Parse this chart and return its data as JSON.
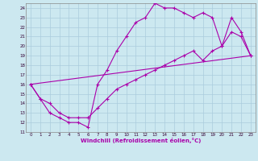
{
  "xlabel": "Windchill (Refroidissement éolien,°C)",
  "bg_color": "#cce8f0",
  "grid_color": "#aaccdd",
  "line_color": "#aa00aa",
  "xlim": [
    -0.5,
    23.5
  ],
  "ylim": [
    11,
    24.5
  ],
  "xticks": [
    0,
    1,
    2,
    3,
    4,
    5,
    6,
    7,
    8,
    9,
    10,
    11,
    12,
    13,
    14,
    15,
    16,
    17,
    18,
    19,
    20,
    21,
    22,
    23
  ],
  "yticks": [
    11,
    12,
    13,
    14,
    15,
    16,
    17,
    18,
    19,
    20,
    21,
    22,
    23,
    24
  ],
  "line1_x": [
    0,
    1,
    2,
    3,
    4,
    5,
    6,
    7,
    8,
    9,
    10,
    11,
    12,
    13,
    14,
    15,
    16,
    17,
    18,
    19,
    20,
    21,
    22,
    23
  ],
  "line1_y": [
    16,
    14.5,
    13,
    12.5,
    12,
    12,
    11.5,
    16,
    17.5,
    19.5,
    21,
    22.5,
    23,
    24.5,
    24,
    24,
    23.5,
    23,
    23.5,
    23,
    20,
    23,
    21.5,
    19
  ],
  "line2_x": [
    0,
    1,
    2,
    3,
    4,
    5,
    6,
    7,
    8,
    9,
    10,
    11,
    12,
    13,
    14,
    15,
    16,
    17,
    18,
    19,
    20,
    21,
    22,
    23
  ],
  "line2_y": [
    16,
    14.5,
    14,
    13,
    12.5,
    12.5,
    12.5,
    13.5,
    14.5,
    15.5,
    16,
    16.5,
    17,
    17.5,
    18,
    18.5,
    19,
    19.5,
    18.5,
    19.5,
    20,
    21.5,
    21,
    19
  ],
  "line3_x": [
    0,
    23
  ],
  "line3_y": [
    16,
    19
  ]
}
